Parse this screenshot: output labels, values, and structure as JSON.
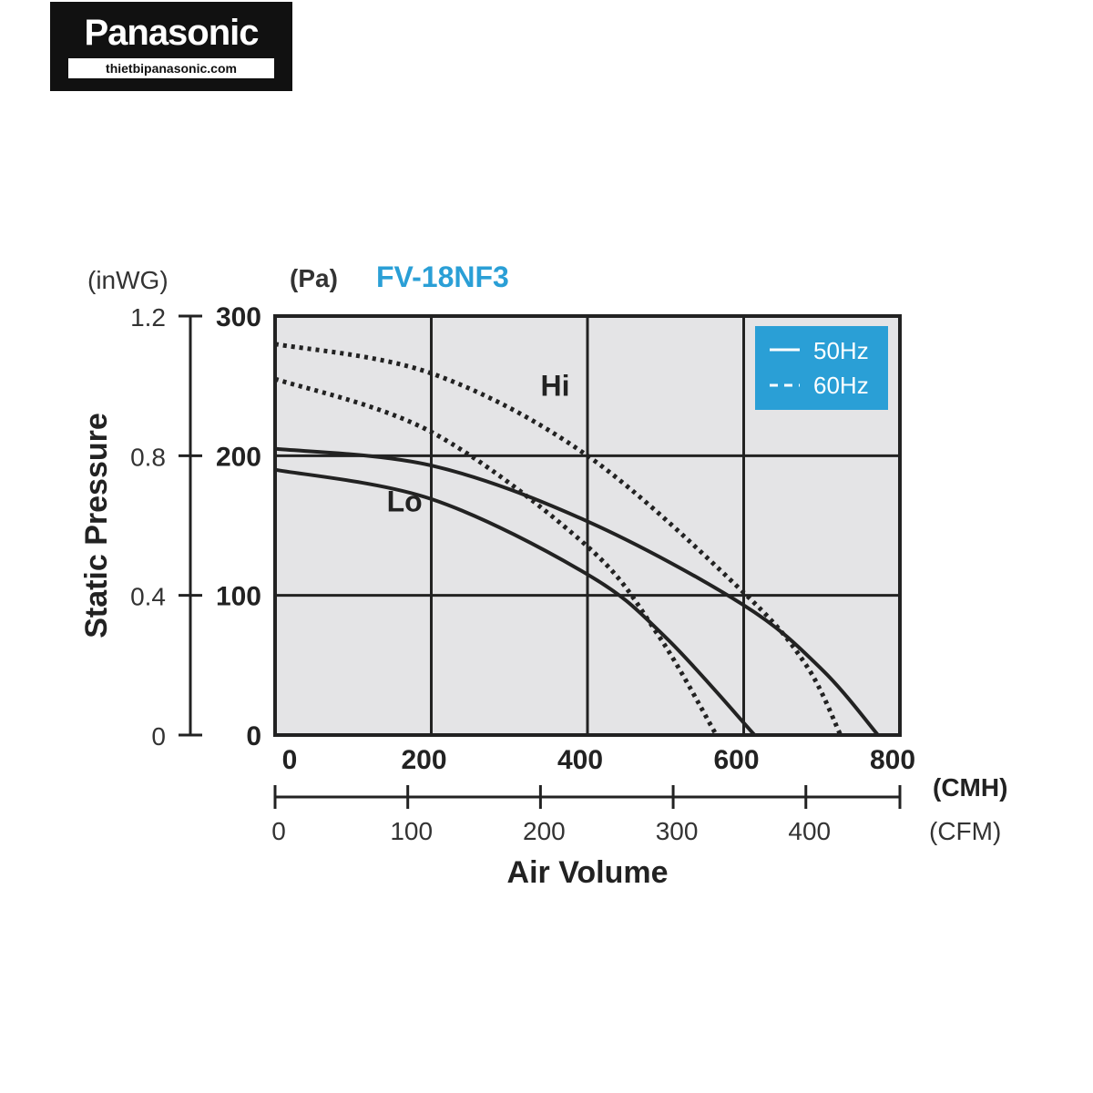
{
  "logo": {
    "brand": "Panasonic",
    "site": "thietbipanasonic.com"
  },
  "chart_data": {
    "type": "line",
    "title": "FV-18NF3",
    "title_color": "#2a9fd6",
    "xlabel": "Air Volume",
    "ylabel": "Static Pressure",
    "x_unit": "(CMH)",
    "x2_unit": "(CFM)",
    "y_unit": "(Pa)",
    "y2_unit": "(inWG)",
    "xlim": [
      0,
      800
    ],
    "ylim": [
      0,
      300
    ],
    "x_ticks": [
      "200",
      "400",
      "600",
      "800"
    ],
    "x_tick_values": [
      200,
      400,
      600,
      800
    ],
    "x2_ticks": [
      "0",
      "100",
      "200",
      "300",
      "400"
    ],
    "x2_tick_values": [
      0,
      100,
      200,
      300,
      400
    ],
    "x_zero_label": "0",
    "y_ticks": [
      "0",
      "100",
      "200",
      "300"
    ],
    "y_tick_values": [
      0,
      100,
      200,
      300
    ],
    "y2_ticks": [
      "0",
      "0.4",
      "0.8",
      "1.2"
    ],
    "grid": true,
    "legend_position": "top-right",
    "legend": [
      {
        "label": "50Hz",
        "style": "solid"
      },
      {
        "label": "60Hz",
        "style": "dashed"
      }
    ],
    "legend_bg": "#2a9fd6",
    "annotations": [
      {
        "text": "Hi",
        "x": 340,
        "y": 243
      },
      {
        "text": "Lo",
        "x": 143,
        "y": 160
      }
    ],
    "series": [
      {
        "name": "Hi 50Hz",
        "style": "solid",
        "points": [
          [
            0,
            205
          ],
          [
            200,
            193
          ],
          [
            400,
            153
          ],
          [
            600,
            93
          ],
          [
            700,
            47
          ],
          [
            772,
            0
          ]
        ]
      },
      {
        "name": "Lo 50Hz",
        "style": "solid",
        "points": [
          [
            0,
            190
          ],
          [
            200,
            169
          ],
          [
            400,
            115
          ],
          [
            500,
            70
          ],
          [
            614,
            0
          ]
        ]
      },
      {
        "name": "Hi 60Hz",
        "style": "dotted",
        "points": [
          [
            0,
            280
          ],
          [
            200,
            259
          ],
          [
            400,
            200
          ],
          [
            600,
            102
          ],
          [
            680,
            50
          ],
          [
            724,
            0
          ]
        ]
      },
      {
        "name": "Lo 60Hz",
        "style": "dotted",
        "points": [
          [
            0,
            255
          ],
          [
            200,
            217
          ],
          [
            400,
            135
          ],
          [
            490,
            72
          ],
          [
            565,
            0
          ]
        ]
      }
    ]
  }
}
